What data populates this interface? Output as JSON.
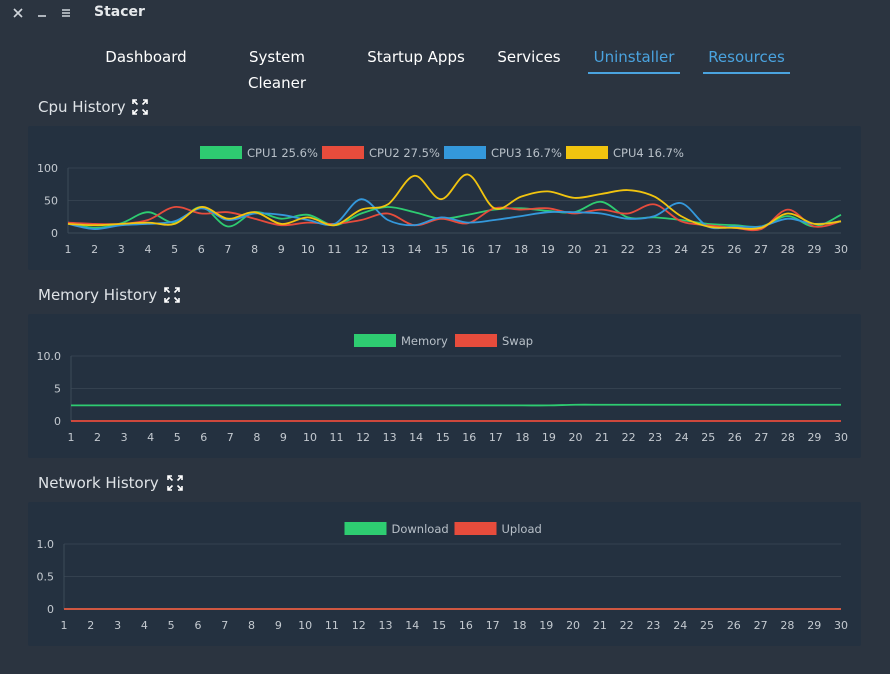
{
  "window": {
    "title": "Stacer",
    "close_icon": "close-icon",
    "minimize_icon": "minimize-icon",
    "menu_icon": "menu-icon"
  },
  "tabs": [
    {
      "label": "Dashboard",
      "active": false
    },
    {
      "label": "System Cleaner",
      "active": false
    },
    {
      "label": "Startup Apps",
      "active": false
    },
    {
      "label": "Services",
      "active": false
    },
    {
      "label": "Uninstaller",
      "active": true
    },
    {
      "label": "Resources",
      "active": true
    }
  ],
  "sections": {
    "cpu": {
      "title": "Cpu History",
      "expand_icon": "expand-icon"
    },
    "memory": {
      "title": "Memory History",
      "expand_icon": "expand-icon"
    },
    "network": {
      "title": "Network History",
      "expand_icon": "expand-icon"
    }
  },
  "colors": {
    "green": "#2ecc71",
    "red": "#e74c3c",
    "blue": "#3498db",
    "yellow": "#f1c40f",
    "accent": "#4aa3df",
    "panel": "#243140"
  },
  "chart_data": [
    {
      "id": "cpu",
      "type": "line",
      "x": [
        1,
        2,
        3,
        4,
        5,
        6,
        7,
        8,
        9,
        10,
        11,
        12,
        13,
        14,
        15,
        16,
        17,
        18,
        19,
        20,
        21,
        22,
        23,
        24,
        25,
        26,
        27,
        28,
        29,
        30
      ],
      "ylim": [
        0,
        100
      ],
      "yticks": [
        "0",
        "50",
        "100"
      ],
      "series": [
        {
          "name": "CPU1 25.6%",
          "color": "#2ecc71",
          "values": [
            16,
            8,
            15,
            32,
            16,
            40,
            10,
            32,
            22,
            28,
            12,
            30,
            40,
            32,
            22,
            28,
            36,
            38,
            34,
            32,
            48,
            24,
            24,
            20,
            14,
            12,
            10,
            26,
            10,
            28
          ]
        },
        {
          "name": "CPU2 27.5%",
          "color": "#e74c3c",
          "values": [
            16,
            14,
            14,
            20,
            40,
            30,
            32,
            22,
            12,
            16,
            14,
            20,
            30,
            12,
            22,
            15,
            38,
            36,
            38,
            30,
            36,
            30,
            44,
            18,
            12,
            8,
            6,
            36,
            10,
            18
          ]
        },
        {
          "name": "CPU3 16.7%",
          "color": "#3498db",
          "values": [
            14,
            6,
            12,
            14,
            18,
            38,
            20,
            30,
            28,
            20,
            14,
            52,
            20,
            12,
            24,
            16,
            20,
            26,
            32,
            32,
            30,
            22,
            26,
            46,
            10,
            10,
            10,
            22,
            14,
            18
          ]
        },
        {
          "name": "CPU4 16.7%",
          "color": "#f1c40f",
          "values": [
            14,
            12,
            14,
            16,
            14,
            40,
            22,
            32,
            14,
            24,
            12,
            36,
            44,
            88,
            52,
            90,
            38,
            56,
            64,
            54,
            60,
            66,
            56,
            26,
            10,
            8,
            8,
            30,
            14,
            18
          ]
        }
      ]
    },
    {
      "id": "memory",
      "type": "line",
      "x": [
        1,
        2,
        3,
        4,
        5,
        6,
        7,
        8,
        9,
        10,
        11,
        12,
        13,
        14,
        15,
        16,
        17,
        18,
        19,
        20,
        21,
        22,
        23,
        24,
        25,
        26,
        27,
        28,
        29,
        30
      ],
      "ylim": [
        0,
        10
      ],
      "yticks": [
        "0",
        "5",
        "10.0"
      ],
      "series": [
        {
          "name": "Memory",
          "color": "#2ecc71",
          "values": [
            2.4,
            2.4,
            2.4,
            2.4,
            2.4,
            2.4,
            2.4,
            2.4,
            2.4,
            2.4,
            2.4,
            2.4,
            2.4,
            2.4,
            2.4,
            2.4,
            2.4,
            2.4,
            2.4,
            2.5,
            2.5,
            2.5,
            2.5,
            2.5,
            2.5,
            2.5,
            2.5,
            2.5,
            2.5,
            2.5
          ]
        },
        {
          "name": "Swap",
          "color": "#e74c3c",
          "values": [
            0,
            0,
            0,
            0,
            0,
            0,
            0,
            0,
            0,
            0,
            0,
            0,
            0,
            0,
            0,
            0,
            0,
            0,
            0,
            0,
            0,
            0,
            0,
            0,
            0,
            0,
            0,
            0,
            0,
            0
          ]
        }
      ]
    },
    {
      "id": "network",
      "type": "line",
      "x": [
        1,
        2,
        3,
        4,
        5,
        6,
        7,
        8,
        9,
        10,
        11,
        12,
        13,
        14,
        15,
        16,
        17,
        18,
        19,
        20,
        21,
        22,
        23,
        24,
        25,
        26,
        27,
        28,
        29,
        30
      ],
      "ylim": [
        0,
        1
      ],
      "yticks": [
        "0",
        "0.5",
        "1.0"
      ],
      "series": [
        {
          "name": "Download",
          "color": "#2ecc71",
          "values": [
            0,
            0,
            0,
            0,
            0,
            0,
            0,
            0,
            0,
            0,
            0,
            0,
            0,
            0,
            0,
            0,
            0,
            0,
            0,
            0,
            0,
            0,
            0,
            0,
            0,
            0,
            0,
            0,
            0,
            0
          ]
        },
        {
          "name": "Upload",
          "color": "#e74c3c",
          "values": [
            0,
            0,
            0,
            0,
            0,
            0,
            0,
            0,
            0,
            0,
            0,
            0,
            0,
            0,
            0,
            0,
            0,
            0,
            0,
            0,
            0,
            0,
            0,
            0,
            0,
            0,
            0,
            0,
            0,
            0
          ]
        }
      ]
    }
  ]
}
